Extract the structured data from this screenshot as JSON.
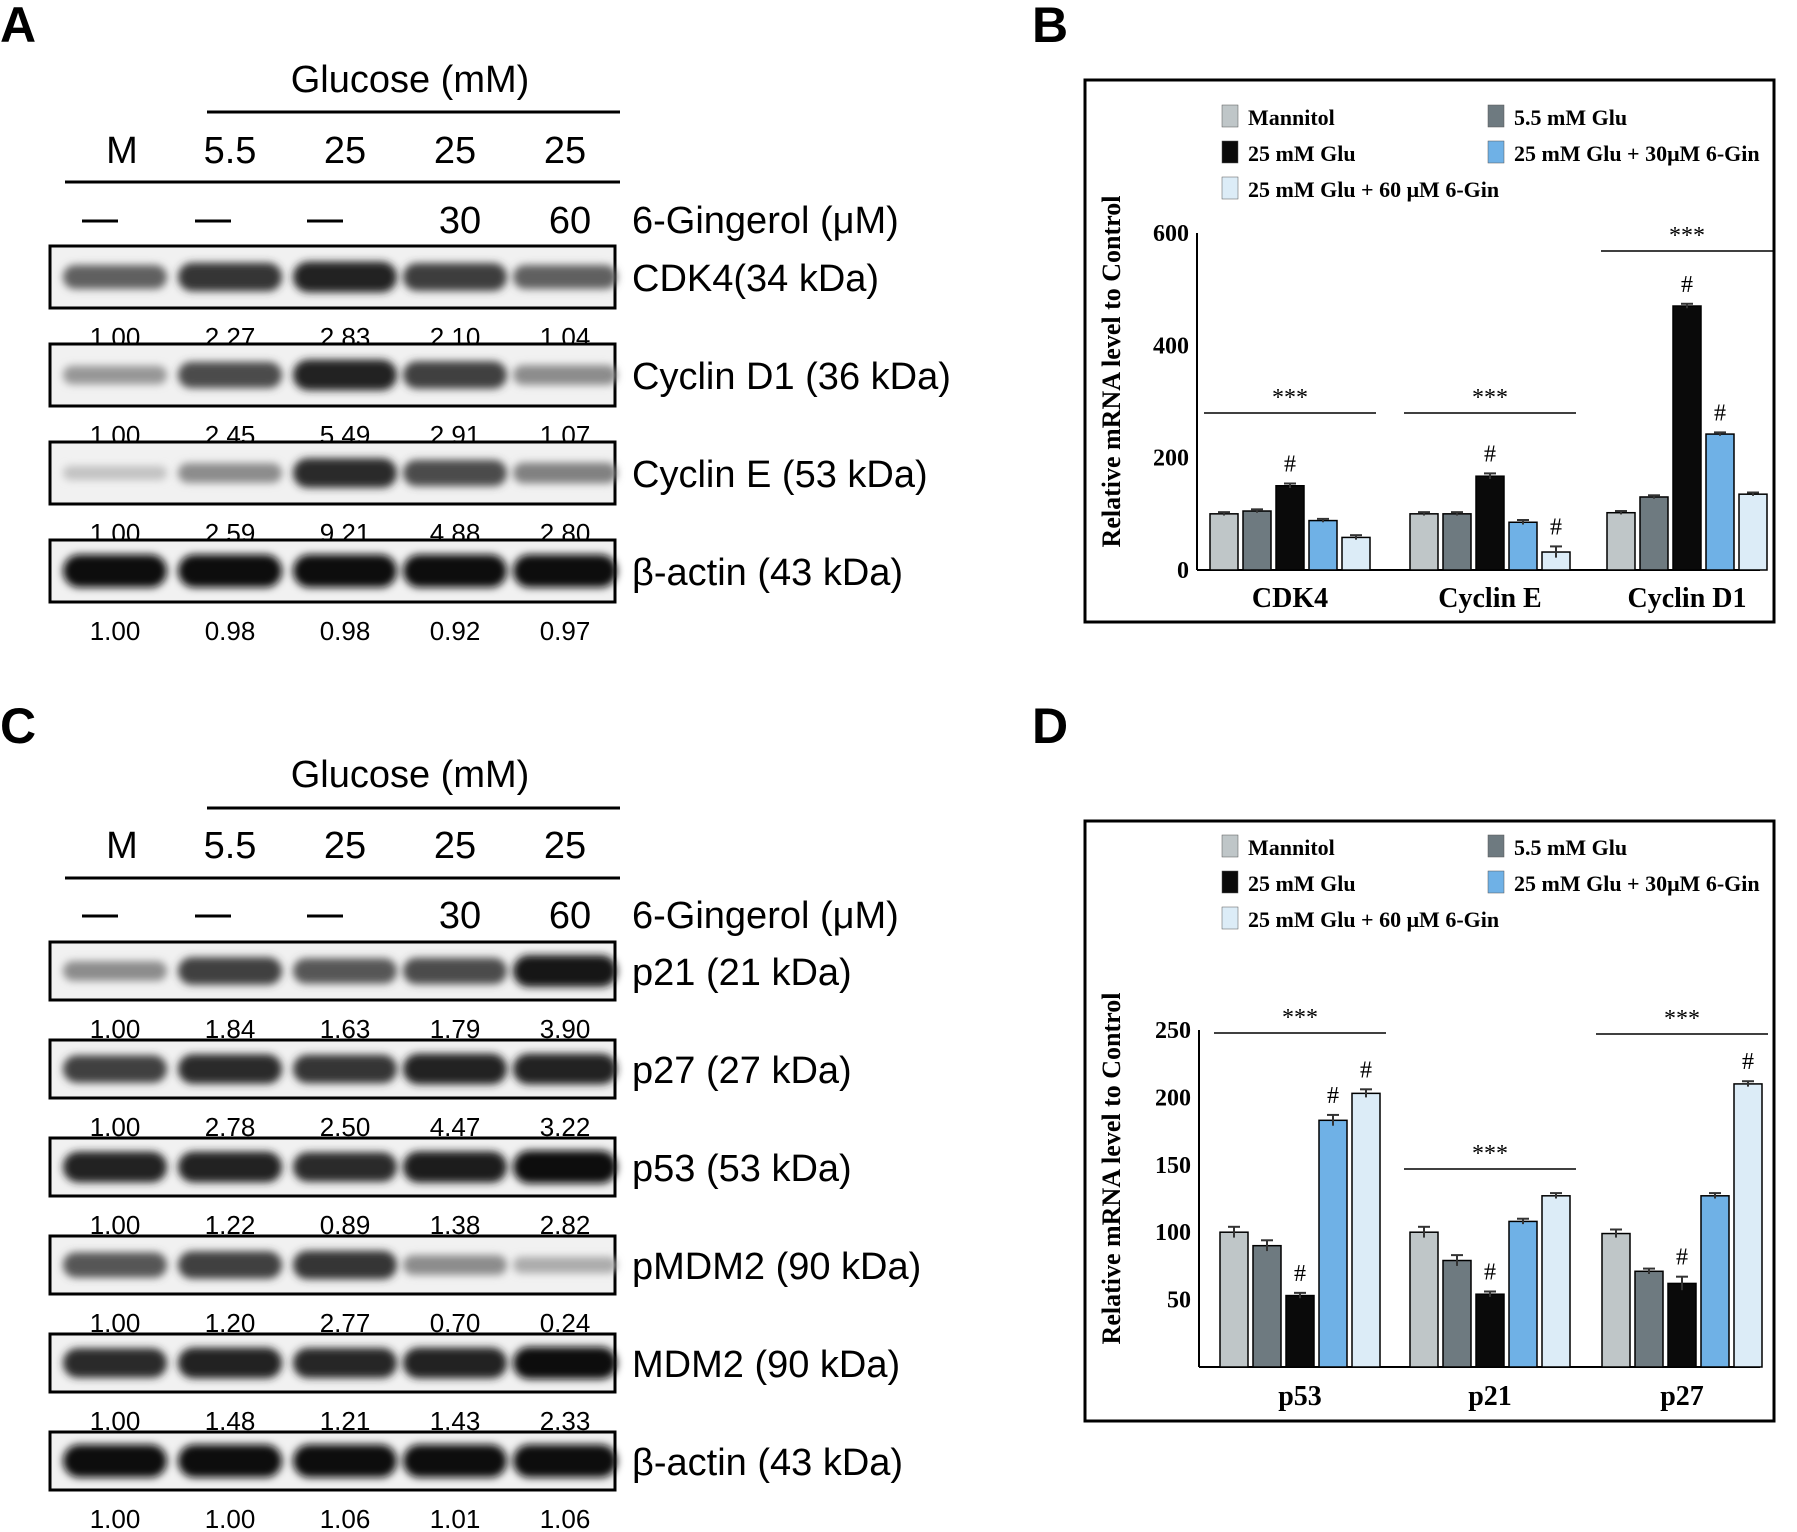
{
  "blot_common": {
    "header": "Glucose (mM)",
    "lanes": [
      "M",
      "5.5",
      "25",
      "25",
      "25"
    ],
    "gingerol_label": "6-Gingerol (μM)",
    "gingerol": [
      "—",
      "—",
      "—",
      "30",
      "60"
    ]
  },
  "panels": [
    {
      "letter": "A",
      "blots": [
        {
          "label": "CDK4(34 kDa)",
          "values": [
            "1.00",
            "2.27",
            "2.83",
            "2.10",
            "1.04"
          ],
          "intensity": [
            0.55,
            0.75,
            0.85,
            0.72,
            0.55
          ]
        },
        {
          "label": "Cyclin D1 (36 kDa)",
          "values": [
            "1.00",
            "2.45",
            "5.49",
            "2.91",
            "1.07"
          ],
          "intensity": [
            0.3,
            0.65,
            0.85,
            0.7,
            0.35
          ]
        },
        {
          "label": "Cyclin E (53 kDa)",
          "values": [
            "1.00",
            "2.59",
            "9.21",
            "4.88",
            "2.80"
          ],
          "intensity": [
            0.1,
            0.35,
            0.8,
            0.65,
            0.4
          ]
        },
        {
          "label": "β-actin (43 kDa)",
          "values": [
            "1.00",
            "0.98",
            "0.98",
            "0.92",
            "0.97"
          ],
          "intensity": [
            0.95,
            0.95,
            0.95,
            0.95,
            0.95
          ]
        }
      ]
    },
    {
      "letter": "B"
    },
    {
      "letter": "C",
      "blots": [
        {
          "label": "p21 (21 kDa)",
          "values": [
            "1.00",
            "1.84",
            "1.63",
            "1.79",
            "3.90"
          ],
          "intensity": [
            0.35,
            0.7,
            0.6,
            0.65,
            0.9
          ]
        },
        {
          "label": "p27 (27 kDa)",
          "values": [
            "1.00",
            "2.78",
            "2.50",
            "4.47",
            "3.22"
          ],
          "intensity": [
            0.7,
            0.8,
            0.75,
            0.85,
            0.85
          ]
        },
        {
          "label": "p53 (53 kDa)",
          "values": [
            "1.00",
            "1.22",
            "0.89",
            "1.38",
            "2.82"
          ],
          "intensity": [
            0.85,
            0.85,
            0.8,
            0.88,
            0.95
          ]
        },
        {
          "label": "pMDM2 (90 kDa)",
          "values": [
            "1.00",
            "1.20",
            "2.77",
            "0.70",
            "0.24"
          ],
          "intensity": [
            0.6,
            0.7,
            0.75,
            0.35,
            0.2
          ]
        },
        {
          "label": "MDM2 (90 kDa)",
          "values": [
            "1.00",
            "1.48",
            "1.21",
            "1.43",
            "2.33"
          ],
          "intensity": [
            0.8,
            0.85,
            0.82,
            0.85,
            0.92
          ]
        },
        {
          "label": "β-actin (43 kDa)",
          "values": [
            "1.00",
            "1.00",
            "1.06",
            "1.01",
            "1.06"
          ],
          "intensity": [
            0.95,
            0.95,
            0.95,
            0.95,
            0.95
          ]
        }
      ]
    },
    {
      "letter": "D"
    }
  ],
  "chart_data": [
    {
      "panel": "B",
      "type": "bar",
      "ylabel": "Relative mRNA level to Control",
      "xlabel": "",
      "ylim": [
        0,
        600
      ],
      "yticks": [
        0,
        200,
        400,
        600
      ],
      "categories": [
        "CDK4",
        "Cyclin E",
        "Cyclin D1"
      ],
      "series": [
        {
          "name": "Mannitol",
          "color": "#bfc6c8",
          "values": [
            100,
            100,
            102
          ],
          "errors": [
            3,
            3,
            3
          ]
        },
        {
          "name": "5.5 mM Glu",
          "color": "#6e7a80",
          "values": [
            105,
            100,
            130
          ],
          "errors": [
            3,
            3,
            3
          ]
        },
        {
          "name": "25 mM Glu",
          "color": "#0a0a0a",
          "values": [
            150,
            167,
            470
          ],
          "errors": [
            4,
            5,
            4
          ]
        },
        {
          "name": "25 mM Glu + 30μM 6-Gin",
          "color": "#6fb1e6",
          "values": [
            88,
            85,
            242
          ],
          "errors": [
            3,
            4,
            3
          ]
        },
        {
          "name": "25 mM Glu + 60 μM 6-Gin",
          "color": "#dcecf7",
          "values": [
            58,
            32,
            135
          ],
          "errors": [
            4,
            10,
            3
          ]
        }
      ],
      "hash_marks": [
        {
          "category": "CDK4",
          "series": "25 mM Glu"
        },
        {
          "category": "Cyclin E",
          "series": "25 mM Glu"
        },
        {
          "category": "Cyclin E",
          "series": "25 mM Glu + 60 μM 6-Gin"
        },
        {
          "category": "Cyclin D1",
          "series": "25 mM Glu"
        },
        {
          "category": "Cyclin D1",
          "series": "25 mM Glu + 30μM 6-Gin"
        }
      ],
      "hash_symbol": "#",
      "significance": [
        {
          "category": "CDK4",
          "label": "***"
        },
        {
          "category": "Cyclin E",
          "label": "***"
        },
        {
          "category": "Cyclin D1",
          "label": "***"
        }
      ],
      "grid": false,
      "legend": "top"
    },
    {
      "panel": "D",
      "type": "bar",
      "ylabel": "Relative mRNA level to Control",
      "xlabel": "",
      "ylim": [
        0,
        250
      ],
      "yticks": [
        50,
        100,
        150,
        200,
        250
      ],
      "categories": [
        "p53",
        "p21",
        "p27"
      ],
      "series": [
        {
          "name": "Mannitol",
          "color": "#bfc6c8",
          "values": [
            100,
            100,
            99
          ],
          "errors": [
            4,
            4,
            3
          ]
        },
        {
          "name": "5.5 mM Glu",
          "color": "#6e7a80",
          "values": [
            90,
            79,
            71
          ],
          "errors": [
            4,
            4,
            2
          ]
        },
        {
          "name": "25 mM Glu",
          "color": "#0a0a0a",
          "values": [
            53,
            54,
            62
          ],
          "errors": [
            2,
            2,
            5
          ]
        },
        {
          "name": "25 mM Glu + 30μM 6-Gin",
          "color": "#6fb1e6",
          "values": [
            183,
            108,
            127
          ],
          "errors": [
            4,
            2,
            2
          ]
        },
        {
          "name": "25 mM Glu + 60 μM 6-Gin",
          "color": "#dcecf7",
          "values": [
            203,
            127,
            210
          ],
          "errors": [
            3,
            2,
            2
          ]
        }
      ],
      "hash_marks": [
        {
          "category": "p53",
          "series": "25 mM Glu"
        },
        {
          "category": "p53",
          "series": "25 mM Glu + 30μM 6-Gin"
        },
        {
          "category": "p53",
          "series": "25 mM Glu + 60 μM 6-Gin"
        },
        {
          "category": "p21",
          "series": "25 mM Glu"
        },
        {
          "category": "p27",
          "series": "25 mM Glu"
        },
        {
          "category": "p27",
          "series": "25 mM Glu + 60 μM 6-Gin"
        }
      ],
      "hash_symbol": "#",
      "significance": [
        {
          "category": "p53",
          "label": "***"
        },
        {
          "category": "p21",
          "label": "***"
        },
        {
          "category": "p27",
          "label": "***"
        }
      ],
      "grid": false,
      "legend": "top"
    }
  ]
}
